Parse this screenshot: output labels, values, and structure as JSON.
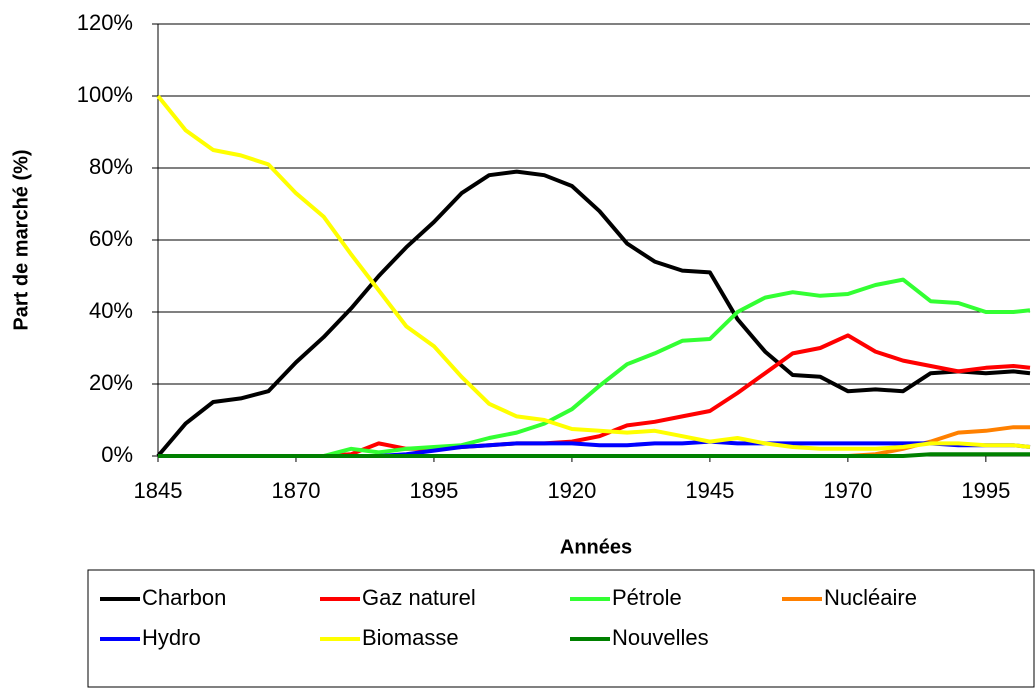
{
  "chart_data": {
    "type": "line",
    "x_label": "Années",
    "y_label": "Part de marché (%)",
    "x": [
      1845,
      1850,
      1855,
      1860,
      1865,
      1870,
      1875,
      1880,
      1885,
      1890,
      1895,
      1900,
      1905,
      1910,
      1915,
      1920,
      1925,
      1930,
      1935,
      1940,
      1945,
      1950,
      1955,
      1960,
      1965,
      1970,
      1975,
      1980,
      1985,
      1990,
      1995,
      2000,
      2003
    ],
    "xlim": [
      1845,
      2003
    ],
    "xticks": [
      1845,
      1870,
      1895,
      1920,
      1945,
      1970,
      1995
    ],
    "ylim": [
      0,
      120
    ],
    "yticks": [
      {
        "value": 0,
        "label": "0%"
      },
      {
        "value": 20,
        "label": "20%"
      },
      {
        "value": 40,
        "label": "40%"
      },
      {
        "value": 60,
        "label": "60%"
      },
      {
        "value": 80,
        "label": "80%"
      },
      {
        "value": 100,
        "label": "100%"
      },
      {
        "value": 120,
        "label": "120%"
      }
    ],
    "grid": true,
    "legend": "bottom",
    "series": [
      {
        "name": "Charbon",
        "color": "#000000",
        "values": [
          0,
          9,
          15,
          16,
          18,
          26,
          33,
          41,
          50,
          58,
          65,
          73,
          78,
          79,
          78,
          75,
          68,
          59,
          54,
          51.5,
          51,
          38,
          29,
          22.5,
          22,
          18,
          18.5,
          18,
          23,
          23.5,
          23,
          23.5,
          23
        ]
      },
      {
        "name": "Gaz naturel",
        "color": "#ff0000",
        "values": [
          0,
          0,
          0,
          0,
          0,
          0,
          0,
          0.5,
          3.5,
          2,
          2,
          2.5,
          3,
          3.5,
          3.5,
          4,
          5.5,
          8.5,
          9.5,
          11,
          12.5,
          17.5,
          23,
          28.5,
          30,
          33.5,
          29,
          26.5,
          25,
          23.5,
          24.5,
          25,
          24.5
        ]
      },
      {
        "name": "Pétrole",
        "color": "#33ff33",
        "values": [
          0,
          0,
          0,
          0,
          0,
          0,
          0,
          2,
          1,
          2,
          2.5,
          3,
          5,
          6.5,
          9,
          13,
          19.5,
          25.5,
          28.5,
          32,
          32.5,
          40,
          44,
          45.5,
          44.5,
          45,
          47.5,
          49,
          43,
          42.5,
          40,
          40,
          40.5
        ]
      },
      {
        "name": "Nucléaire",
        "color": "#ff8000",
        "values": [
          0,
          0,
          0,
          0,
          0,
          0,
          0,
          0,
          0,
          0,
          0,
          0,
          0,
          0,
          0,
          0,
          0,
          0,
          0,
          0,
          0,
          0,
          0,
          0,
          0,
          0,
          0.5,
          2,
          4,
          6.5,
          7,
          8,
          8
        ]
      },
      {
        "name": "Hydro",
        "color": "#0000ff",
        "values": [
          0,
          0,
          0,
          0,
          0,
          0,
          0,
          0,
          0,
          0.5,
          1.5,
          2.5,
          3,
          3.5,
          3.5,
          3.5,
          3,
          3,
          3.5,
          3.5,
          4,
          3.5,
          3.5,
          3.5,
          3.5,
          3.5,
          3.5,
          3.5,
          3.5,
          3,
          3,
          3,
          2.5
        ]
      },
      {
        "name": "Biomasse",
        "color": "#ffff00",
        "values": [
          100,
          90.5,
          85,
          83.5,
          81,
          73,
          66.5,
          56,
          46,
          36,
          30.5,
          22,
          14.5,
          11,
          10,
          7.5,
          7,
          6.5,
          7,
          5.5,
          4,
          5,
          3.5,
          2.5,
          2,
          2,
          2,
          2.5,
          3.5,
          3.5,
          3,
          3,
          2.5
        ]
      },
      {
        "name": "Nouvelles",
        "color": "#008000",
        "values": [
          0,
          0,
          0,
          0,
          0,
          0,
          0,
          0,
          0,
          0,
          0,
          0,
          0,
          0,
          0,
          0,
          0,
          0,
          0,
          0,
          0,
          0,
          0,
          0,
          0,
          0,
          0,
          0,
          0.5,
          0.5,
          0.5,
          0.5,
          0.5
        ]
      }
    ]
  }
}
